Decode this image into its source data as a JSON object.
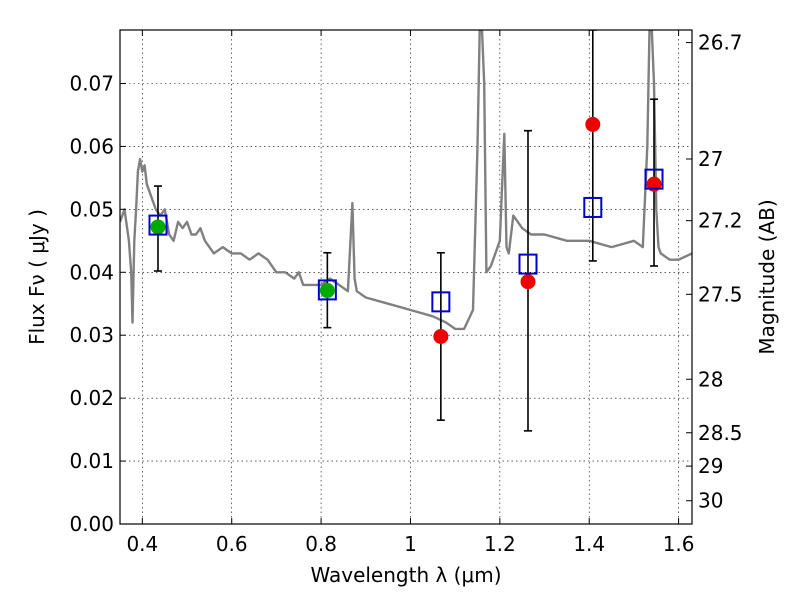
{
  "chart_data": {
    "type": "scatter",
    "xlabel": "Wavelength  λ (μm)",
    "ylabel": "Flux  Fν  ( μJy )",
    "y2label": "Magnitude (AB)",
    "xlim": [
      0.35,
      1.63
    ],
    "ylim": [
      0.0,
      0.0785
    ],
    "grid": true,
    "x_ticks": [
      0.4,
      0.6,
      0.8,
      1.0,
      1.2,
      1.4,
      1.6
    ],
    "x_tick_labels": [
      "0.4",
      "0.6",
      "0.8",
      "1",
      "1.2",
      "1.4",
      "1.6"
    ],
    "y_ticks": [
      0.0,
      0.01,
      0.02,
      0.03,
      0.04,
      0.05,
      0.06,
      0.07
    ],
    "y_tick_labels": [
      "0.00",
      "0.01",
      "0.02",
      "0.03",
      "0.04",
      "0.05",
      "0.06",
      "0.07"
    ],
    "y2_ticks": [
      {
        "label": "26.7",
        "flux": 0.0765
      },
      {
        "label": "27",
        "flux": 0.058
      },
      {
        "label": "27.2",
        "flux": 0.0482
      },
      {
        "label": "27.5",
        "flux": 0.0365
      },
      {
        "label": "28",
        "flux": 0.023
      },
      {
        "label": "28.5",
        "flux": 0.0145
      },
      {
        "label": "29",
        "flux": 0.0092
      },
      {
        "label": "30",
        "flux": 0.0037
      }
    ],
    "colors": {
      "model": "#808080",
      "model_points": "#0000cc",
      "green_points": "#00aa00",
      "red_points": "#ee0000",
      "errorbars": "#000000"
    },
    "model_spectrum": {
      "x": [
        0.35,
        0.36,
        0.37,
        0.375,
        0.378,
        0.382,
        0.386,
        0.39,
        0.395,
        0.4,
        0.405,
        0.41,
        0.42,
        0.43,
        0.44,
        0.45,
        0.46,
        0.47,
        0.48,
        0.49,
        0.5,
        0.51,
        0.52,
        0.53,
        0.54,
        0.55,
        0.56,
        0.58,
        0.6,
        0.62,
        0.64,
        0.66,
        0.68,
        0.7,
        0.72,
        0.74,
        0.75,
        0.76,
        0.78,
        0.8,
        0.82,
        0.84,
        0.86,
        0.87,
        0.875,
        0.88,
        0.9,
        0.95,
        1.0,
        1.05,
        1.08,
        1.1,
        1.12,
        1.14,
        1.15,
        1.155,
        1.16,
        1.165,
        1.17,
        1.18,
        1.2,
        1.21,
        1.215,
        1.22,
        1.23,
        1.25,
        1.27,
        1.3,
        1.35,
        1.4,
        1.45,
        1.5,
        1.52,
        1.53,
        1.535,
        1.54,
        1.545,
        1.55,
        1.555,
        1.56,
        1.58,
        1.6,
        1.63
      ],
      "y": [
        0.048,
        0.05,
        0.045,
        0.04,
        0.032,
        0.045,
        0.05,
        0.056,
        0.058,
        0.056,
        0.057,
        0.054,
        0.052,
        0.05,
        0.049,
        0.05,
        0.046,
        0.045,
        0.048,
        0.047,
        0.048,
        0.046,
        0.046,
        0.047,
        0.045,
        0.044,
        0.043,
        0.044,
        0.043,
        0.043,
        0.042,
        0.043,
        0.042,
        0.04,
        0.04,
        0.039,
        0.04,
        0.038,
        0.038,
        0.038,
        0.039,
        0.038,
        0.037,
        0.051,
        0.039,
        0.037,
        0.036,
        0.035,
        0.034,
        0.033,
        0.032,
        0.031,
        0.031,
        0.034,
        0.06,
        0.0785,
        0.0785,
        0.07,
        0.04,
        0.041,
        0.045,
        0.062,
        0.044,
        0.043,
        0.049,
        0.047,
        0.046,
        0.046,
        0.045,
        0.045,
        0.044,
        0.045,
        0.044,
        0.06,
        0.0785,
        0.0785,
        0.07,
        0.05,
        0.044,
        0.043,
        0.042,
        0.042,
        0.043
      ]
    },
    "model_points": [
      {
        "x": 0.435,
        "y": 0.0475
      },
      {
        "x": 0.814,
        "y": 0.0372
      },
      {
        "x": 1.068,
        "y": 0.0353
      },
      {
        "x": 1.263,
        "y": 0.0413
      },
      {
        "x": 1.408,
        "y": 0.0503
      },
      {
        "x": 1.545,
        "y": 0.0548
      }
    ],
    "observed_green": [
      {
        "x": 0.435,
        "y": 0.0472,
        "yerr_low": 0.0402,
        "yerr_high": 0.0537
      },
      {
        "x": 0.814,
        "y": 0.0371,
        "yerr_low": 0.0312,
        "yerr_high": 0.0431
      }
    ],
    "observed_red": [
      {
        "x": 1.068,
        "y": 0.0298,
        "yerr_low": 0.0165,
        "yerr_high": 0.0431
      },
      {
        "x": 1.263,
        "y": 0.0385,
        "yerr_low": 0.0148,
        "yerr_high": 0.0625
      },
      {
        "x": 1.408,
        "y": 0.0635,
        "yerr_low": 0.0418,
        "yerr_high": 0.0785
      },
      {
        "x": 1.545,
        "y": 0.054,
        "yerr_low": 0.041,
        "yerr_high": 0.0675
      }
    ]
  }
}
